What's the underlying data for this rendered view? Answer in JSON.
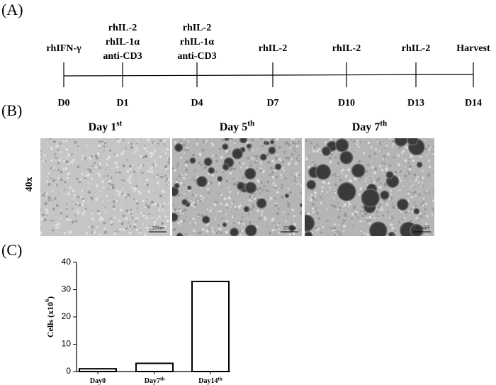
{
  "panel_labels": [
    "(A)",
    "(B)",
    "(C)"
  ],
  "timeline": {
    "events": [
      {
        "labels": [
          "rhIFN-γ"
        ],
        "day": "D0"
      },
      {
        "labels": [
          "rhIL-2",
          "rhIL-1α",
          "anti-CD3"
        ],
        "day": "D1"
      },
      {
        "labels": [
          "rhIL-2",
          "rhIL-1α",
          "anti-CD3"
        ],
        "day": "D4"
      },
      {
        "labels": [
          "rhIL-2"
        ],
        "day": "D7"
      },
      {
        "labels": [
          "rhIL-2"
        ],
        "day": "D10"
      },
      {
        "labels": [
          "rhIL-2"
        ],
        "day": "D13"
      },
      {
        "labels": [
          "Harvest"
        ],
        "day": "D14"
      }
    ]
  },
  "micrographs": {
    "magnification": "40x",
    "panels": [
      {
        "title": "Day 1",
        "title_sup": "st",
        "scale_bar": "200um"
      },
      {
        "title": "Day 5",
        "title_sup": "th",
        "scale_bar": "200um"
      },
      {
        "title": "Day 7",
        "title_sup": "th",
        "scale_bar": "200um"
      }
    ]
  },
  "chart_data": {
    "type": "bar",
    "y_label": "Cells (x10",
    "y_label_sup": "6",
    "y_label_end": ")",
    "categories": [
      "Day0",
      "Day7",
      "Day14"
    ],
    "category_superscripts": [
      null,
      "th",
      "th"
    ],
    "values": [
      1,
      3,
      33
    ],
    "color": "#ffffff",
    "ylim": [
      0,
      40
    ],
    "yticks": [
      0,
      10,
      20,
      30,
      40
    ]
  }
}
